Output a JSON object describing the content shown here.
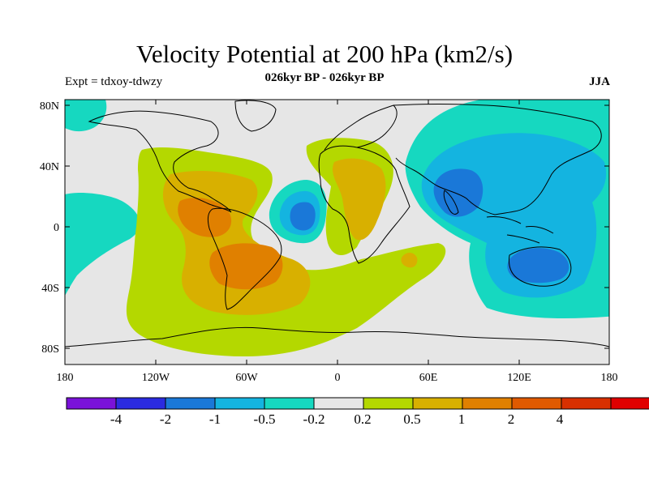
{
  "header": {
    "title": "Velocity Potential at 200 hPa (km2/s)",
    "subtitle": "026kyr BP - 026kyr BP",
    "left_label": "Expt = tdxoy-tdwzy",
    "right_label": "JJA"
  },
  "map": {
    "lat_ticks": [
      "80N",
      "40N",
      "0",
      "40S",
      "80S"
    ],
    "lon_ticks": [
      "180",
      "120W",
      "60W",
      "0",
      "60E",
      "120E",
      "180"
    ],
    "background_color": "#e6e6e6",
    "coastline_color": "#000000"
  },
  "colorbar": {
    "colors": [
      "#7a12d9",
      "#2b2be0",
      "#1a78d8",
      "#14b4e0",
      "#16d8c0",
      "#e6e6e6",
      "#b4d800",
      "#d8b000",
      "#e08000",
      "#e05a00",
      "#d83000",
      "#e00000"
    ],
    "labels": [
      "-4",
      "-2",
      "-1",
      "-0.5",
      "-0.2",
      "0.2",
      "0.5",
      "1",
      "2",
      "4"
    ]
  }
}
